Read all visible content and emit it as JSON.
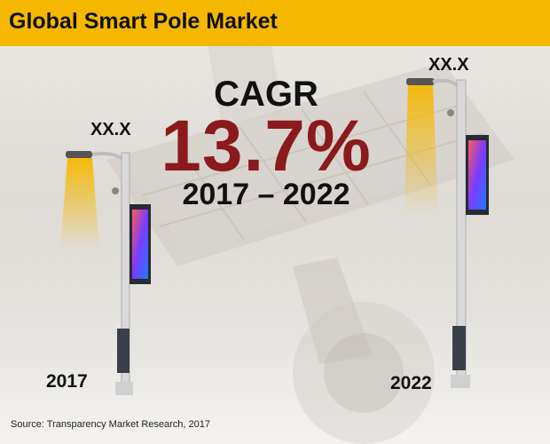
{
  "header": {
    "title": "Global Smart Pole Market"
  },
  "cagr": {
    "label": "CAGR",
    "value": "13.7%",
    "period": "2017 – 2022"
  },
  "chart_data": {
    "type": "bar",
    "title": "Global Smart Pole Market",
    "categories": [
      "2017",
      "2022"
    ],
    "value_labels": [
      "XX.X",
      "XX.X"
    ],
    "cagr": "13.7%",
    "period": "2017 – 2022"
  },
  "footer": {
    "source": "Source: Transparency Market Research, 2017"
  },
  "colors": {
    "header_band": "#f5b800",
    "cagr_value": "#8b1a1d",
    "lamp_glow": "#f5b800"
  },
  "icons": {
    "background": "solar-panel-photo",
    "bar_marks": "smart-pole-icon"
  }
}
